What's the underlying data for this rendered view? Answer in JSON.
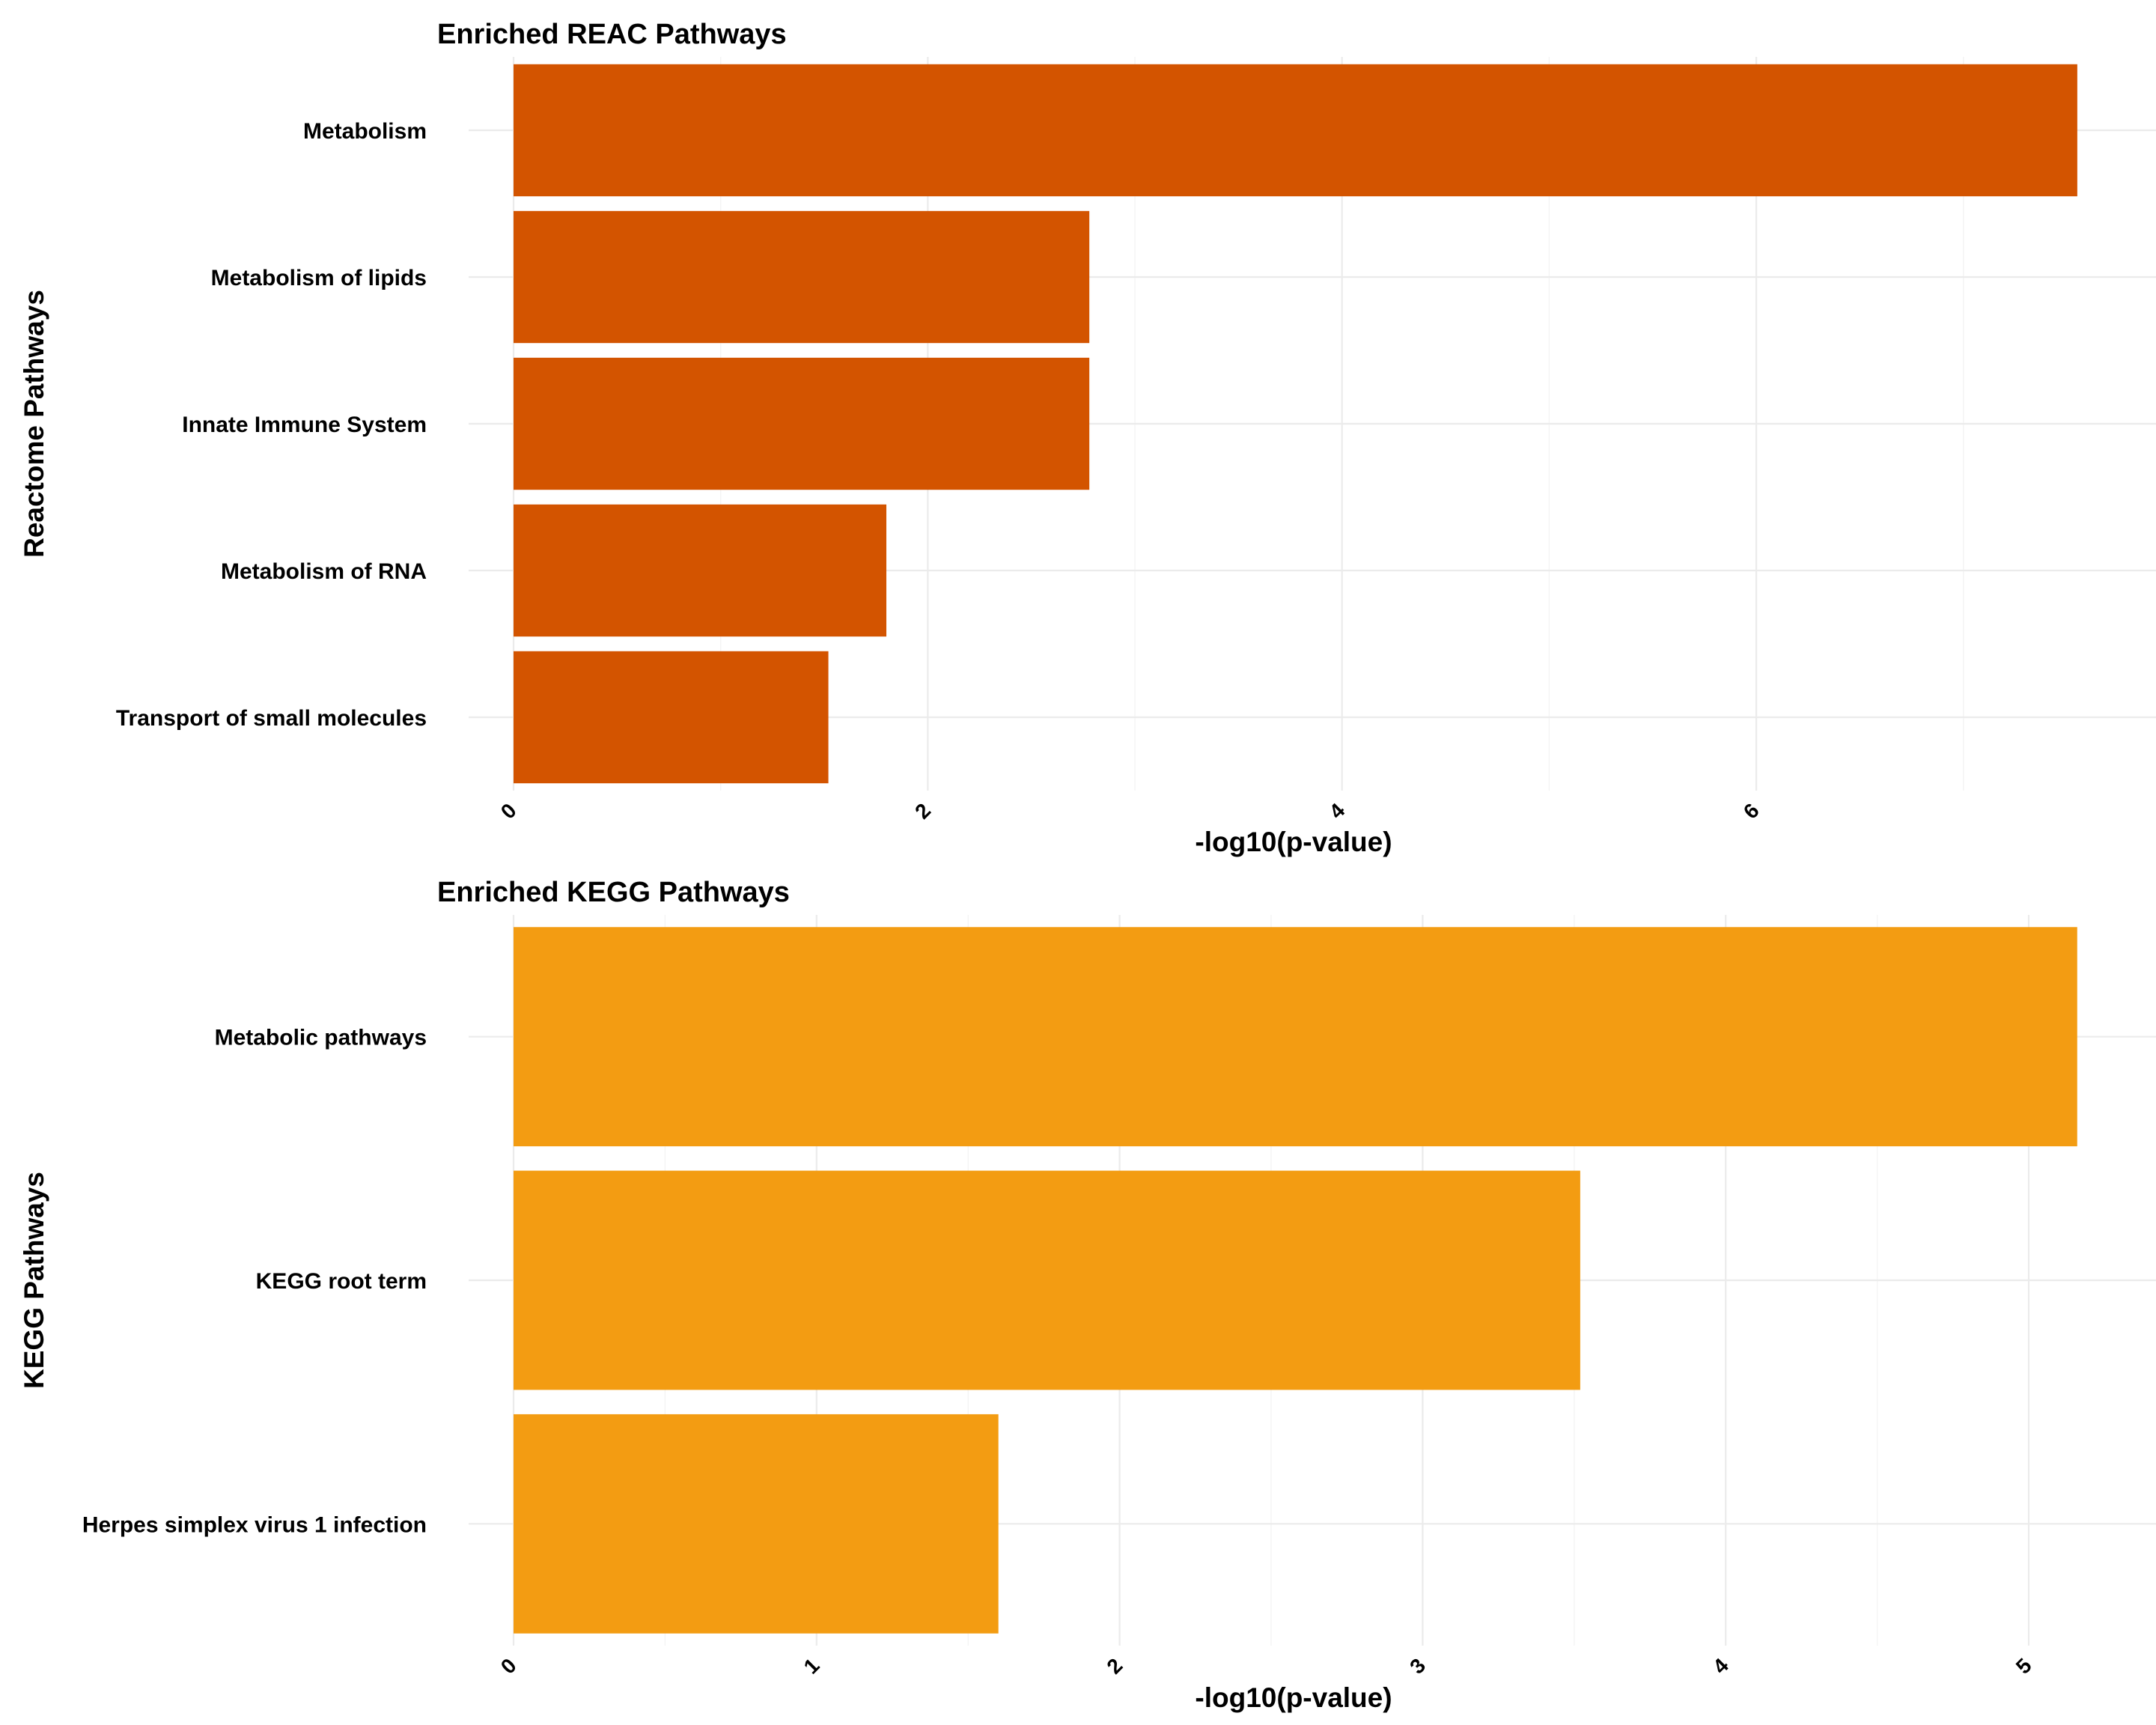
{
  "chart_data": [
    {
      "type": "bar",
      "orientation": "horizontal",
      "title": "Enriched REAC Pathways",
      "xlabel": "-log10(p-value)",
      "ylabel": "Reactome Pathways",
      "color": "#d35400",
      "grid": true,
      "legend": "none",
      "xlim": [
        0,
        7.93
      ],
      "xticks": [
        0,
        2,
        4,
        6
      ],
      "categories": [
        "Metabolism",
        "Metabolism of lipids",
        "Innate Immune System",
        "Metabolism of RNA",
        "Transport of small molecules"
      ],
      "values": [
        7.55,
        2.78,
        2.78,
        1.8,
        1.52
      ]
    },
    {
      "type": "bar",
      "orientation": "horizontal",
      "title": "Enriched KEGG Pathways",
      "xlabel": "-log10(p-value)",
      "ylabel": "KEGG Pathways",
      "color": "#f39c12",
      "grid": true,
      "legend": "none",
      "xlim": [
        0,
        5.42
      ],
      "xticks": [
        0,
        1,
        2,
        3,
        4,
        5
      ],
      "categories": [
        "Metabolic pathways",
        "KEGG root term",
        "Herpes simplex virus 1 infection"
      ],
      "values": [
        5.16,
        3.52,
        1.6
      ]
    }
  ]
}
